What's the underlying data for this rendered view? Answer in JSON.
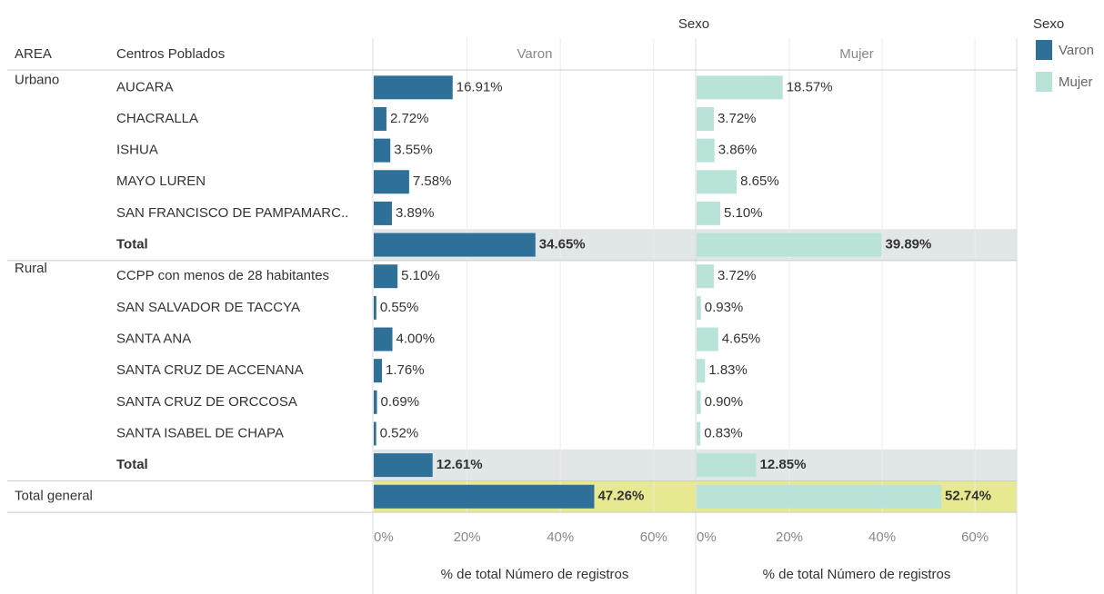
{
  "chart_data": {
    "type": "bar",
    "orientation": "horizontal",
    "header": "Sexo",
    "row_headers": [
      "AREA",
      "Centros Poblados"
    ],
    "areas": [
      "Urbano",
      null,
      null,
      null,
      null,
      null,
      "Rural",
      null,
      null,
      null,
      null,
      null,
      null,
      "Total general"
    ],
    "categories": [
      "AUCARA",
      "CHACRALLA",
      "ISHUA",
      "MAYO LUREN",
      "SAN FRANCISCO DE PAMPAMARC..",
      "Total",
      "CCPP con menos de 28 habitantes",
      "SAN SALVADOR DE TACCYA",
      "SANTA ANA",
      "SANTA CRUZ DE ACCENANA",
      "SANTA CRUZ DE ORCCOSA",
      "SANTA ISABEL DE CHAPA",
      "Total",
      null
    ],
    "series": [
      {
        "name": "Varon",
        "color": "#2e7098",
        "values": [
          16.91,
          2.72,
          3.55,
          7.58,
          3.89,
          34.65,
          5.1,
          0.55,
          4.0,
          1.76,
          0.69,
          0.52,
          12.61,
          47.26
        ],
        "value_labels": [
          "16.91%",
          "2.72%",
          "3.55%",
          "7.58%",
          "3.89%",
          "34.65%",
          "5.10%",
          "0.55%",
          "4.00%",
          "1.76%",
          "0.69%",
          "0.52%",
          "12.61%",
          "47.26%"
        ]
      },
      {
        "name": "Mujer",
        "color": "#b9e3d9",
        "values": [
          18.57,
          3.72,
          3.86,
          8.65,
          5.1,
          39.89,
          3.72,
          0.93,
          4.65,
          1.83,
          0.9,
          0.83,
          12.85,
          52.74
        ],
        "value_labels": [
          "18.57%",
          "3.72%",
          "3.86%",
          "8.65%",
          "5.10%",
          "39.89%",
          "3.72%",
          "0.93%",
          "4.65%",
          "1.83%",
          "0.90%",
          "0.83%",
          "12.85%",
          "52.74%"
        ]
      }
    ],
    "xlim": [
      0,
      69
    ],
    "xticks": [
      {
        "value": 0,
        "label": "0%"
      },
      {
        "value": 20,
        "label": "20%"
      },
      {
        "value": 40,
        "label": "40%"
      },
      {
        "value": 60,
        "label": "60%"
      }
    ],
    "xlabel": "% de total Número de registros",
    "grid": true,
    "legend_title": "Sexo",
    "legend_position": "right"
  }
}
